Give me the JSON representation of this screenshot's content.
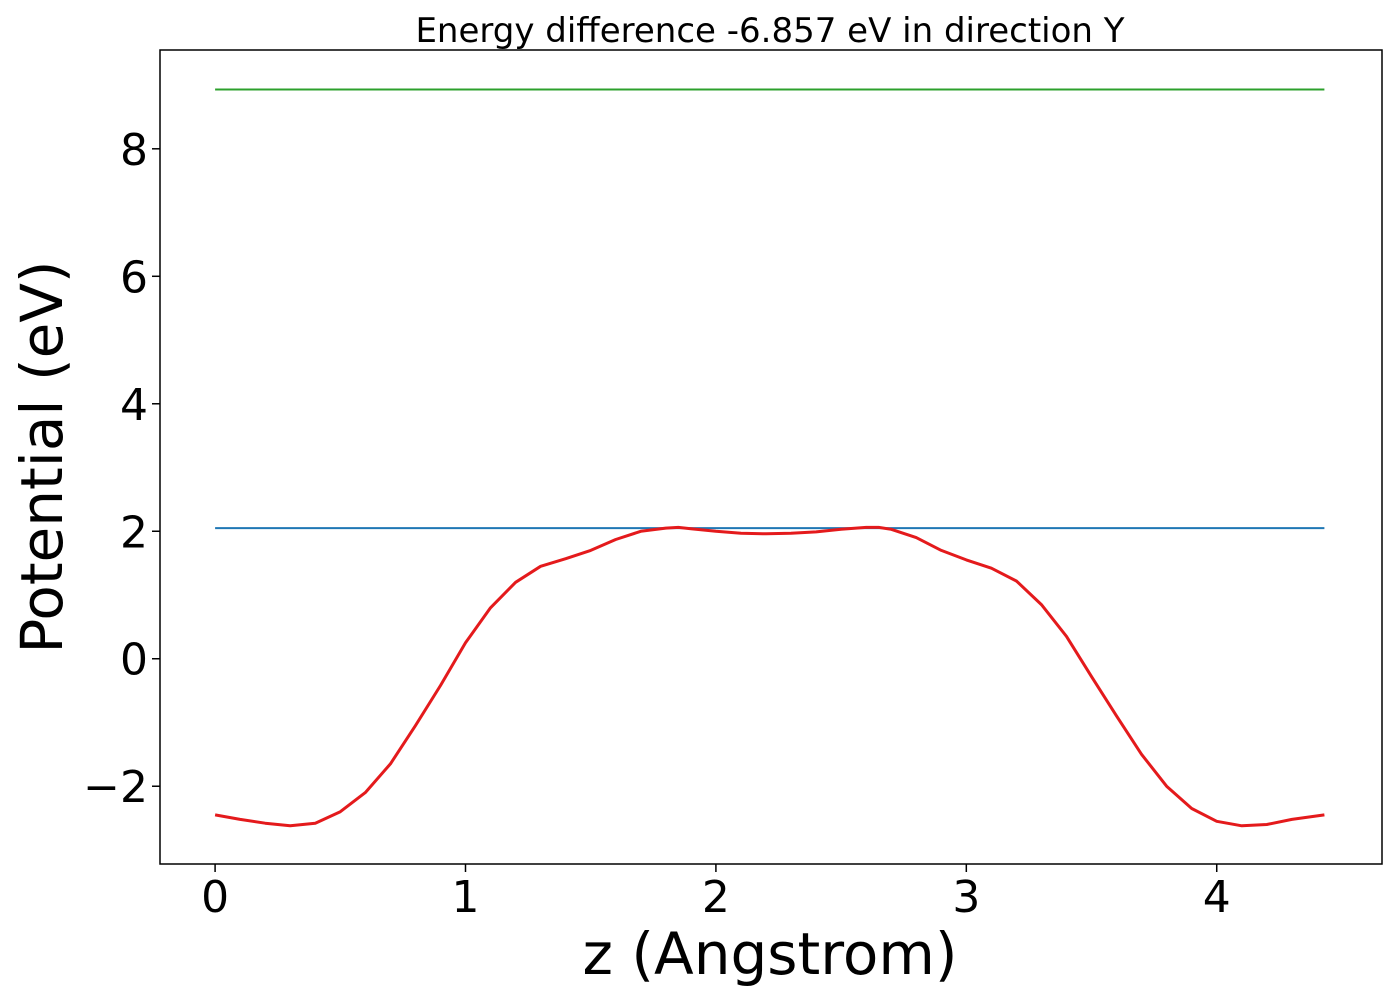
{
  "chart_data": {
    "type": "line",
    "title": "Energy difference -6.857 eV in direction Y",
    "xlabel": "z (Angstrom)",
    "ylabel": "Potential (eV)",
    "xlim": [
      -0.22,
      4.66
    ],
    "ylim": [
      -3.22,
      9.55
    ],
    "xticks": [
      0,
      1,
      2,
      3,
      4
    ],
    "xtick_labels": [
      "0",
      "1",
      "2",
      "3",
      "4"
    ],
    "yticks": [
      -2,
      0,
      2,
      4,
      6,
      8
    ],
    "ytick_labels": [
      "−2",
      "0",
      "2",
      "4",
      "6",
      "8"
    ],
    "grid": false,
    "series": [
      {
        "color": "#2ca02c",
        "x": [
          0,
          4.43
        ],
        "y": [
          8.93,
          8.93
        ]
      },
      {
        "color": "#1f77b4",
        "x": [
          0,
          4.43
        ],
        "y": [
          2.05,
          2.05
        ]
      },
      {
        "color": "#e41a1c",
        "x": [
          0,
          0.1,
          0.2,
          0.3,
          0.4,
          0.5,
          0.6,
          0.7,
          0.8,
          0.9,
          1.0,
          1.1,
          1.2,
          1.3,
          1.4,
          1.5,
          1.6,
          1.7,
          1.8,
          1.85,
          1.9,
          2.0,
          2.1,
          2.2,
          2.3,
          2.4,
          2.5,
          2.6,
          2.65,
          2.7,
          2.8,
          2.9,
          3.0,
          3.1,
          3.2,
          3.3,
          3.4,
          3.5,
          3.6,
          3.7,
          3.8,
          3.9,
          4.0,
          4.1,
          4.2,
          4.3,
          4.43
        ],
        "y": [
          -2.45,
          -2.52,
          -2.58,
          -2.62,
          -2.58,
          -2.4,
          -2.1,
          -1.65,
          -1.05,
          -0.42,
          0.25,
          0.8,
          1.2,
          1.45,
          1.57,
          1.7,
          1.87,
          2.0,
          2.05,
          2.06,
          2.04,
          2.0,
          1.97,
          1.96,
          1.97,
          1.99,
          2.03,
          2.06,
          2.06,
          2.03,
          1.9,
          1.7,
          1.55,
          1.42,
          1.22,
          0.85,
          0.35,
          -0.28,
          -0.9,
          -1.5,
          -2.0,
          -2.35,
          -2.55,
          -2.62,
          -2.6,
          -2.52,
          -2.45
        ]
      }
    ]
  }
}
